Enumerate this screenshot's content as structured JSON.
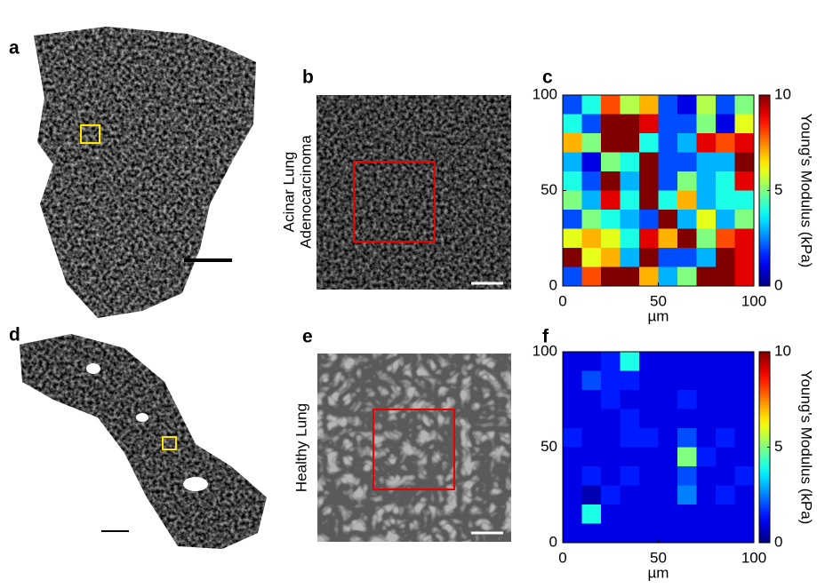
{
  "panel_labels": [
    "a",
    "b",
    "c",
    "d",
    "e",
    "f"
  ],
  "tumor_label": [
    "Acinar Lung",
    "Adenocarcinoma"
  ],
  "healthy_label": "Healthy Lung",
  "heatmaps": [
    {
      "xlabel": "µm",
      "colorbar_label": "Young's Modulus (kPa)",
      "colormap": "jet",
      "xlim": [
        0,
        100
      ],
      "ylim": [
        0,
        100
      ],
      "xticks": [
        0,
        50,
        100
      ],
      "yticks": [
        0,
        50,
        100
      ],
      "clim": [
        0,
        10
      ],
      "cticks": [
        0,
        5,
        10
      ],
      "values": [
        [
          2,
          4,
          8,
          5.5,
          7,
          2,
          1,
          5.5,
          2,
          5
        ],
        [
          4,
          2,
          10,
          10,
          9,
          2,
          2,
          5,
          1,
          6
        ],
        [
          7,
          5,
          10,
          10,
          4,
          2,
          3,
          9,
          8,
          9
        ],
        [
          3,
          1,
          5,
          4,
          10,
          2,
          2,
          3,
          3,
          10
        ],
        [
          4,
          2,
          10,
          3,
          10,
          2,
          5,
          3,
          4,
          9
        ],
        [
          5,
          3,
          9,
          4,
          10,
          4,
          7,
          3,
          4,
          4
        ],
        [
          2,
          5,
          4,
          3,
          2,
          10,
          3,
          6,
          3,
          5
        ],
        [
          6,
          7,
          6,
          4,
          9,
          7,
          10,
          5,
          8,
          9
        ],
        [
          10,
          6,
          7,
          3,
          10,
          2,
          2,
          3,
          10,
          9
        ],
        [
          2,
          8,
          10,
          10,
          7,
          3,
          5,
          10,
          10,
          9
        ]
      ]
    },
    {
      "xlabel": "µm",
      "colorbar_label": "Young's Modulus (kPa)",
      "colormap": "jet",
      "xlim": [
        0,
        100
      ],
      "ylim": [
        0,
        100
      ],
      "xticks": [
        0,
        50,
        100
      ],
      "yticks": [
        0,
        50,
        100
      ],
      "clim": [
        0,
        10
      ],
      "cticks": [
        0,
        5,
        10
      ],
      "values": [
        [
          1,
          1,
          1.5,
          4,
          1,
          1,
          1,
          1,
          1,
          1
        ],
        [
          1,
          2,
          1.5,
          1.5,
          1,
          1,
          1,
          1,
          1,
          1
        ],
        [
          1,
          1,
          1.5,
          1,
          1,
          1,
          1.5,
          1,
          1,
          1
        ],
        [
          1,
          1,
          1,
          1.5,
          1,
          1,
          1,
          1,
          1,
          1
        ],
        [
          1.5,
          1,
          1,
          1.5,
          1.5,
          1,
          2,
          1,
          1.5,
          1
        ],
        [
          1,
          1,
          1,
          1,
          1,
          1,
          5,
          1.5,
          1,
          1
        ],
        [
          1,
          1.5,
          1,
          1.5,
          1,
          1,
          2,
          1,
          1,
          1.5
        ],
        [
          1,
          0.5,
          1.5,
          1,
          1,
          1,
          2.5,
          1,
          1.5,
          1
        ],
        [
          1,
          4,
          1,
          1,
          1,
          1,
          1,
          1,
          1,
          1
        ],
        [
          1,
          1,
          1,
          1,
          1,
          1,
          1,
          1,
          1,
          1
        ]
      ]
    }
  ]
}
